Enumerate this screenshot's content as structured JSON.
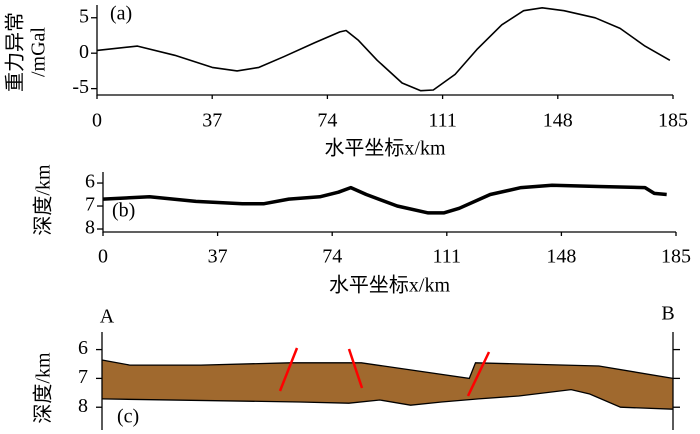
{
  "chart_data": [
    {
      "type": "line",
      "annotation": "(a)",
      "ylabel": [
        "重力异常",
        "/mGal"
      ],
      "xlabel": "水平坐标x/km",
      "xlim": [
        0,
        185
      ],
      "xticks": [
        0,
        37,
        74,
        111,
        148,
        185
      ],
      "ylim": [
        -5.9,
        6.8
      ],
      "yticks": [
        5,
        0,
        -5
      ],
      "color": "#000000",
      "x": [
        0,
        13,
        25,
        37,
        45,
        52,
        60,
        70,
        78,
        80,
        84,
        90,
        98,
        104,
        108,
        115,
        122,
        130,
        137,
        143,
        150,
        160,
        168,
        176,
        184
      ],
      "values": [
        0.4,
        1.0,
        -0.3,
        -2.0,
        -2.5,
        -2.0,
        -0.5,
        1.5,
        3.0,
        3.2,
        1.8,
        -1.0,
        -4.2,
        -5.3,
        -5.2,
        -3.0,
        0.5,
        4.0,
        6.0,
        6.4,
        6.0,
        5.0,
        3.5,
        1.0,
        -1.0
      ]
    },
    {
      "type": "line",
      "annotation": "(b)",
      "ylabel": [
        "深度/km"
      ],
      "xlabel": "水平坐标x/km",
      "xlim": [
        0,
        185
      ],
      "xticks": [
        0,
        37,
        74,
        111,
        148,
        185
      ],
      "ylim": [
        8.13,
        5.52
      ],
      "yticks": [
        6,
        7,
        8
      ],
      "color": "#000000",
      "x": [
        0,
        15,
        30,
        45,
        52,
        60,
        70,
        76,
        80,
        85,
        95,
        105,
        110,
        115,
        125,
        135,
        145,
        160,
        175,
        178,
        182
      ],
      "values": [
        6.7,
        6.6,
        6.8,
        6.9,
        6.9,
        6.7,
        6.6,
        6.4,
        6.2,
        6.5,
        7.0,
        7.3,
        7.3,
        7.1,
        6.5,
        6.2,
        6.1,
        6.15,
        6.2,
        6.45,
        6.5
      ]
    },
    {
      "type": "area",
      "annotation": "(c)",
      "ylabel": [
        "深度/km"
      ],
      "left_label": "A",
      "right_label": "B",
      "xlim": [
        0,
        185
      ],
      "ylim": [
        8.79,
        5.39
      ],
      "yticks": [
        6,
        7,
        8
      ],
      "color": "#a0692e",
      "series": [
        {
          "x": [
            0,
            9,
            32,
            61,
            84,
            119,
            121,
            161,
            185
          ],
          "values": [
            6.36,
            6.54,
            6.54,
            6.46,
            6.46,
            7.0,
            6.46,
            6.57,
            7.0
          ]
        },
        {
          "x": [
            0,
            64,
            80,
            90,
            100,
            110,
            122,
            135,
            152,
            158,
            168,
            185
          ],
          "values": [
            7.71,
            7.82,
            7.86,
            7.75,
            7.93,
            7.82,
            7.71,
            7.61,
            7.39,
            7.54,
            8.0,
            8.07
          ]
        }
      ]
    }
  ]
}
